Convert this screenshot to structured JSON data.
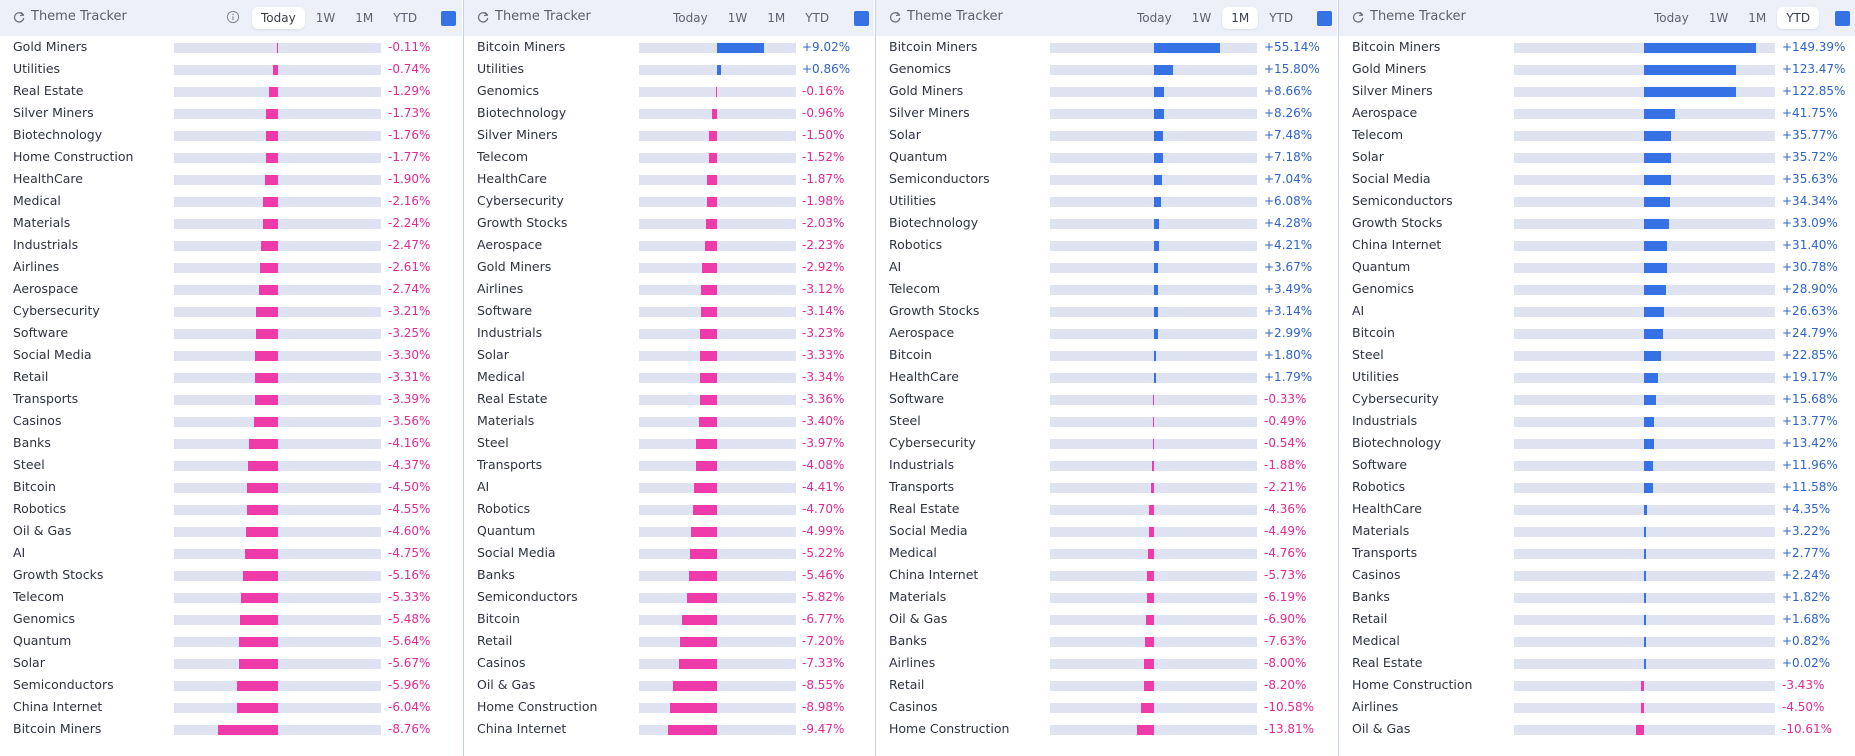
{
  "colors": {
    "positive": "#3672e4",
    "negative": "#ef3aa9",
    "header_bg": "#edf0f9",
    "track": "#dfe2f0"
  },
  "panels": [
    {
      "title": "Theme Tracker",
      "show_info_icon": true,
      "tabs": [
        "Today",
        "1W",
        "1M",
        "YTD"
      ],
      "active_tab": "Today",
      "scale_max_abs": 15,
      "rows": [
        {
          "label": "Gold Miners",
          "value": "-0.11%",
          "pct": -0.11
        },
        {
          "label": "Utilities",
          "value": "-0.74%",
          "pct": -0.74
        },
        {
          "label": "Real Estate",
          "value": "-1.29%",
          "pct": -1.29
        },
        {
          "label": "Silver Miners",
          "value": "-1.73%",
          "pct": -1.73
        },
        {
          "label": "Biotechnology",
          "value": "-1.76%",
          "pct": -1.76
        },
        {
          "label": "Home Construction",
          "value": "-1.77%",
          "pct": -1.77
        },
        {
          "label": "HealthCare",
          "value": "-1.90%",
          "pct": -1.9
        },
        {
          "label": "Medical",
          "value": "-2.16%",
          "pct": -2.16
        },
        {
          "label": "Materials",
          "value": "-2.24%",
          "pct": -2.24
        },
        {
          "label": "Industrials",
          "value": "-2.47%",
          "pct": -2.47
        },
        {
          "label": "Airlines",
          "value": "-2.61%",
          "pct": -2.61
        },
        {
          "label": "Aerospace",
          "value": "-2.74%",
          "pct": -2.74
        },
        {
          "label": "Cybersecurity",
          "value": "-3.21%",
          "pct": -3.21
        },
        {
          "label": "Software",
          "value": "-3.25%",
          "pct": -3.25
        },
        {
          "label": "Social Media",
          "value": "-3.30%",
          "pct": -3.3
        },
        {
          "label": "Retail",
          "value": "-3.31%",
          "pct": -3.31
        },
        {
          "label": "Transports",
          "value": "-3.39%",
          "pct": -3.39
        },
        {
          "label": "Casinos",
          "value": "-3.56%",
          "pct": -3.56
        },
        {
          "label": "Banks",
          "value": "-4.16%",
          "pct": -4.16
        },
        {
          "label": "Steel",
          "value": "-4.37%",
          "pct": -4.37
        },
        {
          "label": "Bitcoin",
          "value": "-4.50%",
          "pct": -4.5
        },
        {
          "label": "Robotics",
          "value": "-4.55%",
          "pct": -4.55
        },
        {
          "label": "Oil & Gas",
          "value": "-4.60%",
          "pct": -4.6
        },
        {
          "label": "AI",
          "value": "-4.75%",
          "pct": -4.75
        },
        {
          "label": "Growth Stocks",
          "value": "-5.16%",
          "pct": -5.16
        },
        {
          "label": "Telecom",
          "value": "-5.33%",
          "pct": -5.33
        },
        {
          "label": "Genomics",
          "value": "-5.48%",
          "pct": -5.48
        },
        {
          "label": "Quantum",
          "value": "-5.64%",
          "pct": -5.64
        },
        {
          "label": "Solar",
          "value": "-5.67%",
          "pct": -5.67
        },
        {
          "label": "Semiconductors",
          "value": "-5.96%",
          "pct": -5.96
        },
        {
          "label": "China Internet",
          "value": "-6.04%",
          "pct": -6.04
        },
        {
          "label": "Bitcoin Miners",
          "value": "-8.76%",
          "pct": -8.76
        }
      ]
    },
    {
      "title": "Theme Tracker",
      "show_info_icon": false,
      "tabs": [
        "Today",
        "1W",
        "1M",
        "YTD"
      ],
      "active_tab": "",
      "scale_max_abs": 15,
      "rows": [
        {
          "label": "Bitcoin Miners",
          "value": "+9.02%",
          "pct": 9.02
        },
        {
          "label": "Utilities",
          "value": "+0.86%",
          "pct": 0.86
        },
        {
          "label": "Genomics",
          "value": "-0.16%",
          "pct": -0.16
        },
        {
          "label": "Biotechnology",
          "value": "-0.96%",
          "pct": -0.96
        },
        {
          "label": "Silver Miners",
          "value": "-1.50%",
          "pct": -1.5
        },
        {
          "label": "Telecom",
          "value": "-1.52%",
          "pct": -1.52
        },
        {
          "label": "HealthCare",
          "value": "-1.87%",
          "pct": -1.87
        },
        {
          "label": "Cybersecurity",
          "value": "-1.98%",
          "pct": -1.98
        },
        {
          "label": "Growth Stocks",
          "value": "-2.03%",
          "pct": -2.03
        },
        {
          "label": "Aerospace",
          "value": "-2.23%",
          "pct": -2.23
        },
        {
          "label": "Gold Miners",
          "value": "-2.92%",
          "pct": -2.92
        },
        {
          "label": "Airlines",
          "value": "-3.12%",
          "pct": -3.12
        },
        {
          "label": "Software",
          "value": "-3.14%",
          "pct": -3.14
        },
        {
          "label": "Industrials",
          "value": "-3.23%",
          "pct": -3.23
        },
        {
          "label": "Solar",
          "value": "-3.33%",
          "pct": -3.33
        },
        {
          "label": "Medical",
          "value": "-3.34%",
          "pct": -3.34
        },
        {
          "label": "Real Estate",
          "value": "-3.36%",
          "pct": -3.36
        },
        {
          "label": "Materials",
          "value": "-3.40%",
          "pct": -3.4
        },
        {
          "label": "Steel",
          "value": "-3.97%",
          "pct": -3.97
        },
        {
          "label": "Transports",
          "value": "-4.08%",
          "pct": -4.08
        },
        {
          "label": "AI",
          "value": "-4.41%",
          "pct": -4.41
        },
        {
          "label": "Robotics",
          "value": "-4.70%",
          "pct": -4.7
        },
        {
          "label": "Quantum",
          "value": "-4.99%",
          "pct": -4.99
        },
        {
          "label": "Social Media",
          "value": "-5.22%",
          "pct": -5.22
        },
        {
          "label": "Banks",
          "value": "-5.46%",
          "pct": -5.46
        },
        {
          "label": "Semiconductors",
          "value": "-5.82%",
          "pct": -5.82
        },
        {
          "label": "Bitcoin",
          "value": "-6.77%",
          "pct": -6.77
        },
        {
          "label": "Retail",
          "value": "-7.20%",
          "pct": -7.2
        },
        {
          "label": "Casinos",
          "value": "-7.33%",
          "pct": -7.33
        },
        {
          "label": "Oil & Gas",
          "value": "-8.55%",
          "pct": -8.55
        },
        {
          "label": "Home Construction",
          "value": "-8.98%",
          "pct": -8.98
        },
        {
          "label": "China Internet",
          "value": "-9.47%",
          "pct": -9.47
        }
      ]
    },
    {
      "title": "Theme Tracker",
      "show_info_icon": false,
      "tabs": [
        "Today",
        "1W",
        "1M",
        "YTD"
      ],
      "active_tab": "1M",
      "scale_max_abs": 86,
      "rows": [
        {
          "label": "Bitcoin Miners",
          "value": "+55.14%",
          "pct": 55.14
        },
        {
          "label": "Genomics",
          "value": "+15.80%",
          "pct": 15.8
        },
        {
          "label": "Gold Miners",
          "value": "+8.66%",
          "pct": 8.66
        },
        {
          "label": "Silver Miners",
          "value": "+8.26%",
          "pct": 8.26
        },
        {
          "label": "Solar",
          "value": "+7.48%",
          "pct": 7.48
        },
        {
          "label": "Quantum",
          "value": "+7.18%",
          "pct": 7.18
        },
        {
          "label": "Semiconductors",
          "value": "+7.04%",
          "pct": 7.04
        },
        {
          "label": "Utilities",
          "value": "+6.08%",
          "pct": 6.08
        },
        {
          "label": "Biotechnology",
          "value": "+4.28%",
          "pct": 4.28
        },
        {
          "label": "Robotics",
          "value": "+4.21%",
          "pct": 4.21
        },
        {
          "label": "AI",
          "value": "+3.67%",
          "pct": 3.67
        },
        {
          "label": "Telecom",
          "value": "+3.49%",
          "pct": 3.49
        },
        {
          "label": "Growth Stocks",
          "value": "+3.14%",
          "pct": 3.14
        },
        {
          "label": "Aerospace",
          "value": "+2.99%",
          "pct": 2.99
        },
        {
          "label": "Bitcoin",
          "value": "+1.80%",
          "pct": 1.8
        },
        {
          "label": "HealthCare",
          "value": "+1.79%",
          "pct": 1.79
        },
        {
          "label": "Software",
          "value": "-0.33%",
          "pct": -0.33
        },
        {
          "label": "Steel",
          "value": "-0.49%",
          "pct": -0.49
        },
        {
          "label": "Cybersecurity",
          "value": "-0.54%",
          "pct": -0.54
        },
        {
          "label": "Industrials",
          "value": "-1.88%",
          "pct": -1.88
        },
        {
          "label": "Transports",
          "value": "-2.21%",
          "pct": -2.21
        },
        {
          "label": "Real Estate",
          "value": "-4.36%",
          "pct": -4.36
        },
        {
          "label": "Social Media",
          "value": "-4.49%",
          "pct": -4.49
        },
        {
          "label": "Medical",
          "value": "-4.76%",
          "pct": -4.76
        },
        {
          "label": "China Internet",
          "value": "-5.73%",
          "pct": -5.73
        },
        {
          "label": "Materials",
          "value": "-6.19%",
          "pct": -6.19
        },
        {
          "label": "Oil & Gas",
          "value": "-6.90%",
          "pct": -6.9
        },
        {
          "label": "Banks",
          "value": "-7.63%",
          "pct": -7.63
        },
        {
          "label": "Airlines",
          "value": "-8.00%",
          "pct": -8.0
        },
        {
          "label": "Retail",
          "value": "-8.20%",
          "pct": -8.2
        },
        {
          "label": "Casinos",
          "value": "-10.58%",
          "pct": -10.58
        },
        {
          "label": "Home Construction",
          "value": "-13.81%",
          "pct": -13.81
        }
      ]
    },
    {
      "title": "Theme Tracker",
      "show_info_icon": false,
      "tabs": [
        "Today",
        "1W",
        "1M",
        "YTD"
      ],
      "active_tab": "YTD",
      "scale_max_abs": 174,
      "rows": [
        {
          "label": "Bitcoin Miners",
          "value": "+149.39%",
          "pct": 149.39
        },
        {
          "label": "Gold Miners",
          "value": "+123.47%",
          "pct": 123.47
        },
        {
          "label": "Silver Miners",
          "value": "+122.85%",
          "pct": 122.85
        },
        {
          "label": "Aerospace",
          "value": "+41.75%",
          "pct": 41.75
        },
        {
          "label": "Telecom",
          "value": "+35.77%",
          "pct": 35.77
        },
        {
          "label": "Solar",
          "value": "+35.72%",
          "pct": 35.72
        },
        {
          "label": "Social Media",
          "value": "+35.63%",
          "pct": 35.63
        },
        {
          "label": "Semiconductors",
          "value": "+34.34%",
          "pct": 34.34
        },
        {
          "label": "Growth Stocks",
          "value": "+33.09%",
          "pct": 33.09
        },
        {
          "label": "China Internet",
          "value": "+31.40%",
          "pct": 31.4
        },
        {
          "label": "Quantum",
          "value": "+30.78%",
          "pct": 30.78
        },
        {
          "label": "Genomics",
          "value": "+28.90%",
          "pct": 28.9
        },
        {
          "label": "AI",
          "value": "+26.63%",
          "pct": 26.63
        },
        {
          "label": "Bitcoin",
          "value": "+24.79%",
          "pct": 24.79
        },
        {
          "label": "Steel",
          "value": "+22.85%",
          "pct": 22.85
        },
        {
          "label": "Utilities",
          "value": "+19.17%",
          "pct": 19.17
        },
        {
          "label": "Cybersecurity",
          "value": "+15.68%",
          "pct": 15.68
        },
        {
          "label": "Industrials",
          "value": "+13.77%",
          "pct": 13.77
        },
        {
          "label": "Biotechnology",
          "value": "+13.42%",
          "pct": 13.42
        },
        {
          "label": "Software",
          "value": "+11.96%",
          "pct": 11.96
        },
        {
          "label": "Robotics",
          "value": "+11.58%",
          "pct": 11.58
        },
        {
          "label": "HealthCare",
          "value": "+4.35%",
          "pct": 4.35
        },
        {
          "label": "Materials",
          "value": "+3.22%",
          "pct": 3.22
        },
        {
          "label": "Transports",
          "value": "+2.77%",
          "pct": 2.77
        },
        {
          "label": "Casinos",
          "value": "+2.24%",
          "pct": 2.24
        },
        {
          "label": "Banks",
          "value": "+1.82%",
          "pct": 1.82
        },
        {
          "label": "Retail",
          "value": "+1.68%",
          "pct": 1.68
        },
        {
          "label": "Medical",
          "value": "+0.82%",
          "pct": 0.82
        },
        {
          "label": "Real Estate",
          "value": "+0.02%",
          "pct": 0.02
        },
        {
          "label": "Home Construction",
          "value": "-3.43%",
          "pct": -3.43
        },
        {
          "label": "Airlines",
          "value": "-4.50%",
          "pct": -4.5
        },
        {
          "label": "Oil & Gas",
          "value": "-10.61%",
          "pct": -10.61
        }
      ]
    }
  ]
}
